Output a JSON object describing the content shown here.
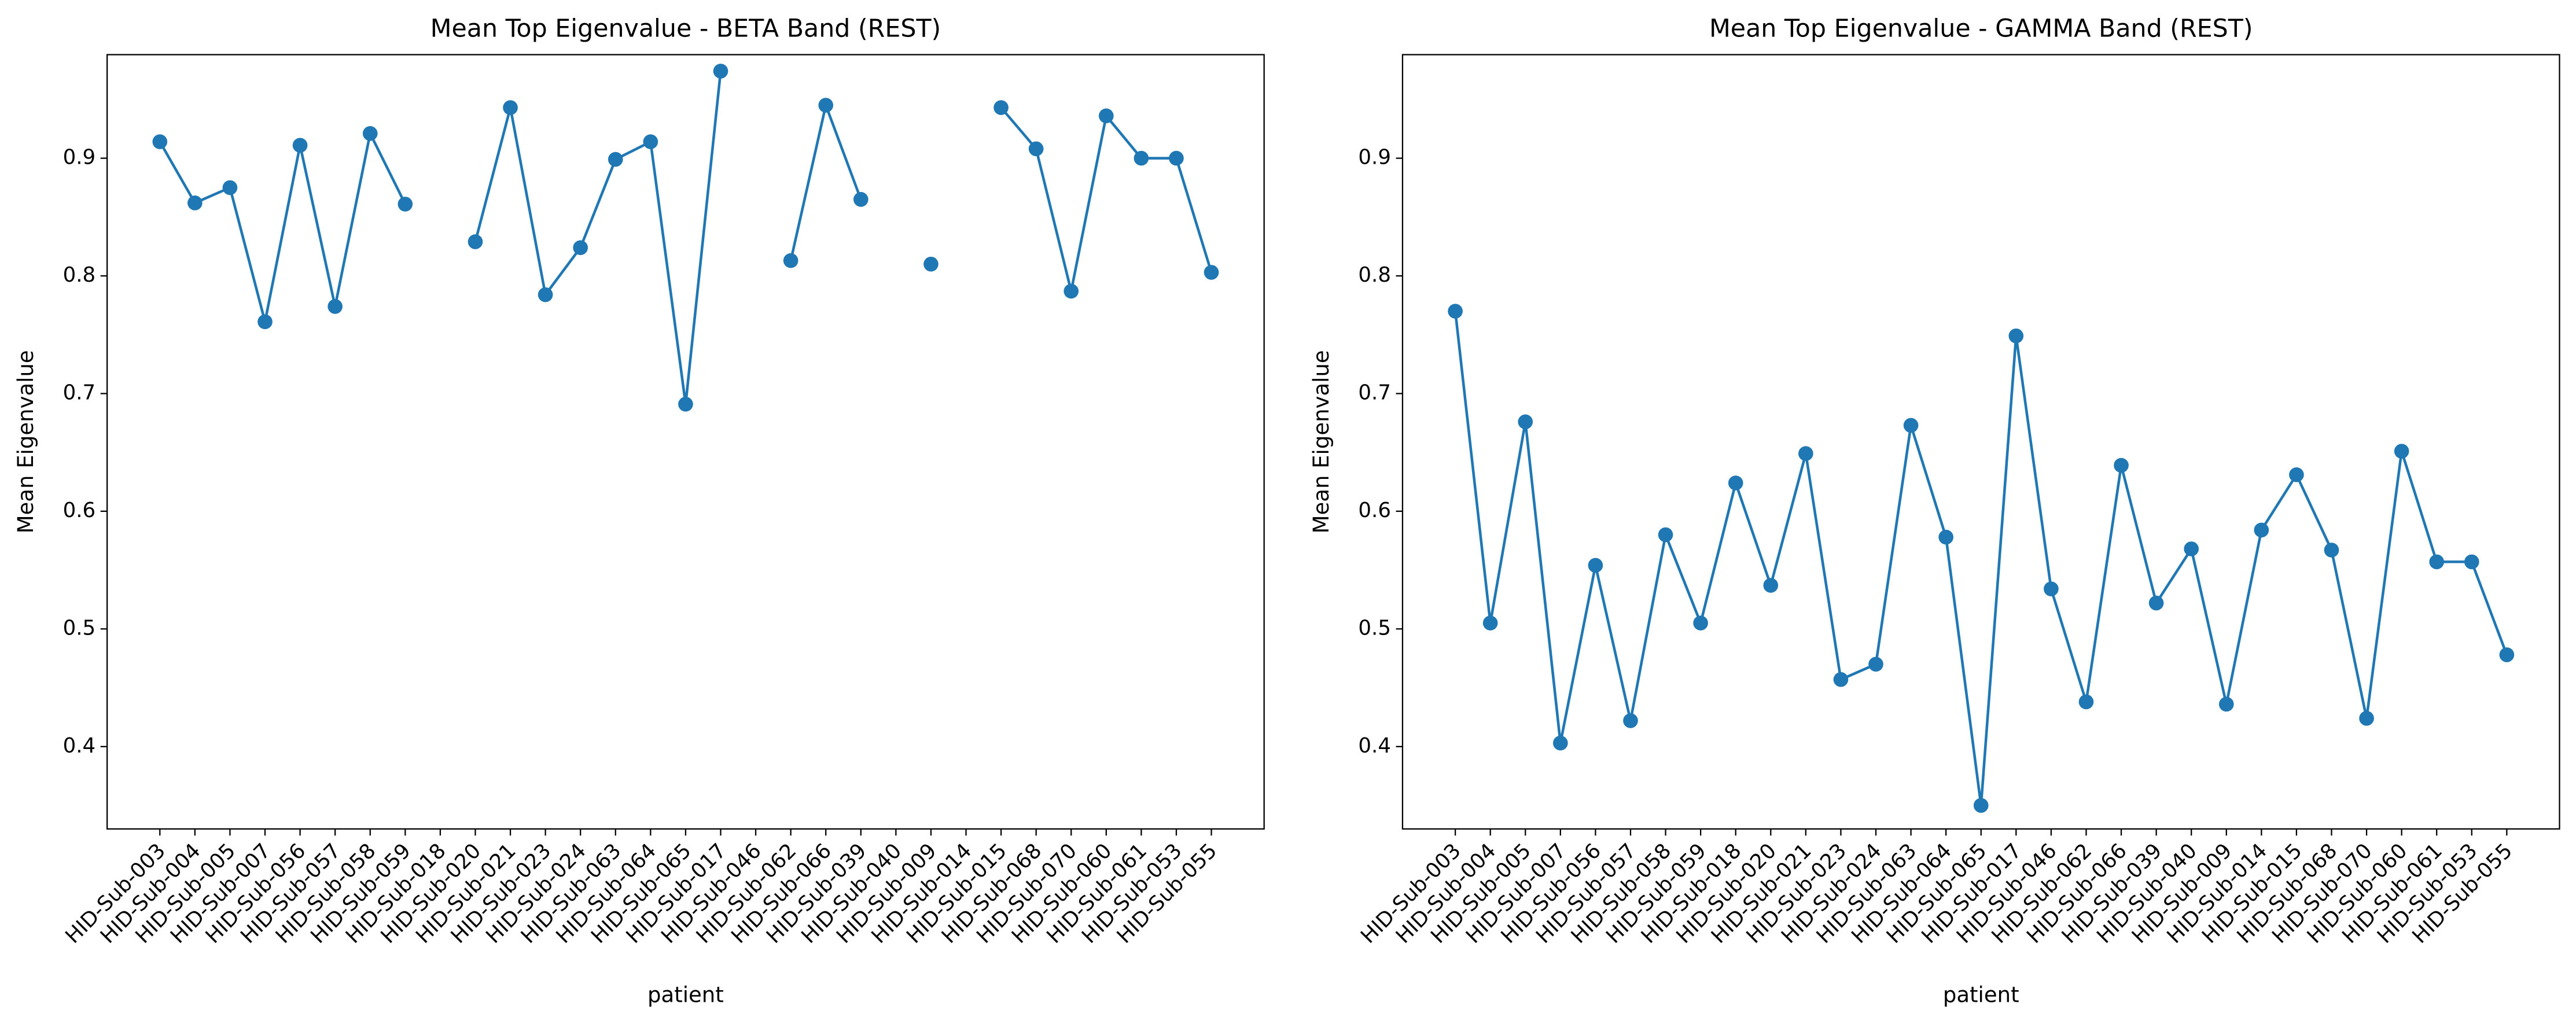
{
  "chart_data": [
    {
      "type": "line",
      "title": "Mean Top Eigenvalue - BETA Band (REST)",
      "xlabel": "patient",
      "ylabel": "Mean Eigenvalue",
      "color": "#1f77b4",
      "categories": [
        "HID-Sub-003",
        "HID-Sub-004",
        "HID-Sub-005",
        "HID-Sub-007",
        "HID-Sub-056",
        "HID-Sub-057",
        "HID-Sub-058",
        "HID-Sub-059",
        "HID-Sub-018",
        "HID-Sub-020",
        "HID-Sub-021",
        "HID-Sub-023",
        "HID-Sub-024",
        "HID-Sub-063",
        "HID-Sub-064",
        "HID-Sub-065",
        "HID-Sub-017",
        "HID-Sub-046",
        "HID-Sub-062",
        "HID-Sub-066",
        "HID-Sub-039",
        "HID-Sub-040",
        "HID-Sub-009",
        "HID-Sub-014",
        "HID-Sub-015",
        "HID-Sub-068",
        "HID-Sub-070",
        "HID-Sub-060",
        "HID-Sub-061",
        "HID-Sub-053",
        "HID-Sub-055"
      ],
      "values": [
        0.914,
        0.862,
        0.875,
        0.761,
        0.911,
        0.774,
        0.921,
        0.861,
        null,
        0.829,
        0.943,
        0.784,
        0.824,
        0.899,
        0.914,
        0.691,
        0.974,
        null,
        0.813,
        0.945,
        0.865,
        null,
        0.81,
        null,
        0.943,
        0.908,
        0.787,
        0.936,
        0.9,
        0.9,
        0.803
      ],
      "ylim": [
        0.33,
        0.988
      ],
      "yticks": [
        0.4,
        0.5,
        0.6,
        0.7,
        0.8,
        0.9
      ]
    },
    {
      "type": "line",
      "title": "Mean Top Eigenvalue - GAMMA Band (REST)",
      "xlabel": "patient",
      "ylabel": "Mean Eigenvalue",
      "color": "#1f77b4",
      "categories": [
        "HID-Sub-003",
        "HID-Sub-004",
        "HID-Sub-005",
        "HID-Sub-007",
        "HID-Sub-056",
        "HID-Sub-057",
        "HID-Sub-058",
        "HID-Sub-059",
        "HID-Sub-018",
        "HID-Sub-020",
        "HID-Sub-021",
        "HID-Sub-023",
        "HID-Sub-024",
        "HID-Sub-063",
        "HID-Sub-064",
        "HID-Sub-065",
        "HID-Sub-017",
        "HID-Sub-046",
        "HID-Sub-062",
        "HID-Sub-066",
        "HID-Sub-039",
        "HID-Sub-040",
        "HID-Sub-009",
        "HID-Sub-014",
        "HID-Sub-015",
        "HID-Sub-068",
        "HID-Sub-070",
        "HID-Sub-060",
        "HID-Sub-061",
        "HID-Sub-053",
        "HID-Sub-055"
      ],
      "values": [
        0.77,
        0.505,
        0.676,
        0.403,
        0.554,
        0.422,
        0.58,
        0.505,
        0.624,
        0.537,
        0.649,
        0.457,
        0.47,
        0.673,
        0.578,
        0.35,
        0.749,
        0.534,
        0.438,
        0.639,
        0.522,
        0.568,
        0.436,
        0.584,
        0.631,
        0.567,
        0.424,
        0.651,
        0.557,
        0.557,
        0.478
      ],
      "ylim": [
        0.33,
        0.988
      ],
      "yticks": [
        0.4,
        0.5,
        0.6,
        0.7,
        0.8,
        0.9
      ]
    }
  ]
}
